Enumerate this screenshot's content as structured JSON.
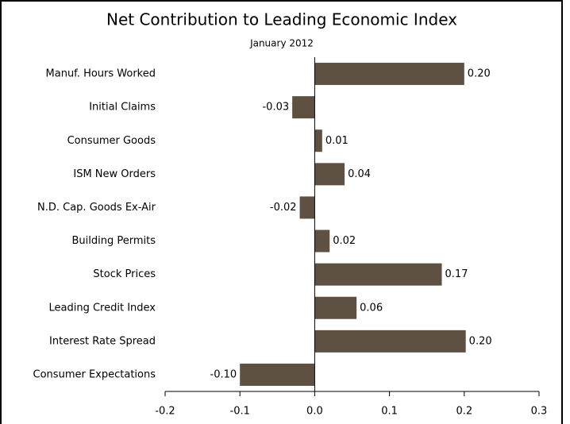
{
  "chart_data": {
    "type": "barh",
    "title": "Net Contribution to Leading Economic Index",
    "subtitle": "January 2012",
    "categories": [
      "Manuf. Hours Worked",
      "Initial Claims",
      "Consumer Goods",
      "ISM New Orders",
      "N.D. Cap. Goods Ex-Air",
      "Building Permits",
      "Stock Prices",
      "Leading Credit Index",
      "Interest Rate Spread",
      "Consumer Expectations"
    ],
    "values": [
      0.2,
      -0.03,
      0.01,
      0.04,
      -0.02,
      0.02,
      0.17,
      0.056,
      0.202,
      -0.1
    ],
    "value_labels": [
      "0.20",
      "-0.03",
      "0.01",
      "0.04",
      "-0.02",
      "0.02",
      "0.17",
      "0.06",
      "0.20",
      "-0.10"
    ],
    "color": "#5e5043",
    "xlim": [
      -0.2,
      0.3
    ],
    "xticks": [
      -0.2,
      -0.1,
      {
        "value": 0,
        "label": "0.0"
      },
      0.1,
      0.2,
      0.3
    ]
  }
}
